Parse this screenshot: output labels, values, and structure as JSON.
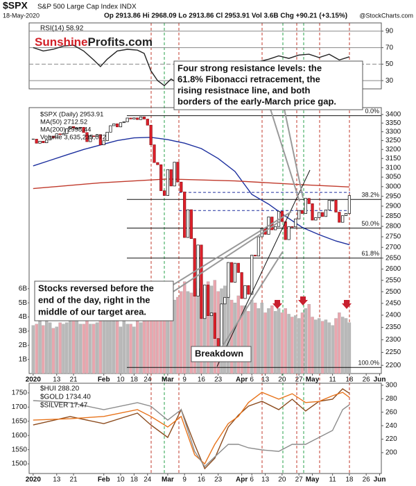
{
  "header": {
    "symbol": "$SPX",
    "description": "S&P 500 Large Cap Index INDX",
    "date": "18-May-2020",
    "quote": "Op 2913.86 Hi 2968.09 Lo 2913.86 Cl 2953.91 Vol 3.6B Chg +90.21 (+3.15%)",
    "source": "@StockCharts.com"
  },
  "logo": {
    "first": "Sunshine",
    "second": "Profits.com"
  },
  "chart_data": [
    {
      "type": "line",
      "grid": true,
      "xlim": [
        -1.2,
        103.5
      ],
      "ylim": [
        20,
        100
      ],
      "yticks": [
        30,
        50,
        70,
        90
      ],
      "series": [
        {
          "name": "RSI(14) 58.92",
          "color": "#222222",
          "x": [
            0,
            3,
            6,
            9,
            12,
            15,
            18,
            20,
            22,
            25,
            28,
            31,
            33,
            35,
            37,
            39,
            41,
            44,
            47,
            50,
            53,
            55,
            58,
            61,
            64,
            67,
            70,
            73,
            76,
            79,
            82,
            85,
            88,
            91,
            94
          ],
          "values": [
            70,
            66,
            68,
            72,
            73,
            66,
            55,
            47,
            56,
            66,
            68,
            67,
            63,
            42,
            30,
            24,
            32,
            24,
            27,
            25,
            28,
            27,
            41,
            42,
            47,
            53,
            56,
            60,
            57,
            61,
            62,
            58,
            62,
            55,
            58.92
          ]
        }
      ]
    },
    {
      "type": "candlestick",
      "log": true,
      "xlim": [
        -1.2,
        103.5
      ],
      "ylim": [
        2169,
        3441
      ],
      "yticks": [
        2200,
        2250,
        2300,
        2350,
        2400,
        2450,
        2500,
        2550,
        2600,
        2650,
        2700,
        2750,
        2800,
        2850,
        2900,
        2950,
        3000,
        3050,
        3100,
        3150,
        3200,
        3250,
        3300,
        3350,
        3400
      ],
      "y2lim": [
        0,
        18.8
      ],
      "y2ticks": [
        {
          "value": 1,
          "label": "1B"
        },
        {
          "value": 2,
          "label": "2B"
        },
        {
          "value": 3,
          "label": "3B"
        },
        {
          "value": 4,
          "label": "4B"
        },
        {
          "value": 5,
          "label": "5B"
        },
        {
          "value": 6,
          "label": "6B"
        }
      ],
      "xticks": [
        {
          "value": 0,
          "label": "2020"
        },
        {
          "value": 7,
          "label": "13"
        },
        {
          "value": 12,
          "label": "21"
        },
        {
          "value": 21,
          "label": "Feb"
        },
        {
          "value": 26,
          "label": "10"
        },
        {
          "value": 30,
          "label": "18"
        },
        {
          "value": 34,
          "label": "24"
        },
        {
          "value": 40,
          "label": "Mar"
        },
        {
          "value": 45,
          "label": "9"
        },
        {
          "value": 50,
          "label": "16"
        },
        {
          "value": 55,
          "label": "23"
        },
        {
          "value": 62,
          "label": "Apr"
        },
        {
          "value": 65,
          "label": "6"
        },
        {
          "value": 69,
          "label": "13"
        },
        {
          "value": 74,
          "label": "20"
        },
        {
          "value": 79,
          "label": "27"
        },
        {
          "value": 83,
          "label": "May"
        },
        {
          "value": 89,
          "label": "11"
        },
        {
          "value": 94,
          "label": "18"
        },
        {
          "value": 99,
          "label": "26"
        },
        {
          "value": 103,
          "label": "Jun"
        }
      ],
      "series": [
        {
          "name": "$SPX (Daily) 2953.91",
          "up_color": "#ffffff",
          "down_color": "#e0202a",
          "values": [
            3257.85,
            3234.85,
            3246.28,
            3237.18,
            3253.05,
            3274.7,
            3265.35,
            3288.13,
            3283.15,
            3289.29,
            3316.81,
            3329.62,
            3320.79,
            3321.75,
            3325.54,
            3295.47,
            3243.63,
            3276.24,
            3273.4,
            3283.66,
            3225.52,
            3248.92,
            3297.59,
            3334.69,
            3345.78,
            3327.71,
            3352.09,
            3357.75,
            3379.45,
            3373.94,
            3380.16,
            3370.29,
            3386.15,
            3373.23,
            3337.75,
            3225.89,
            3128.21,
            3116.39,
            2978.76,
            2954.22,
            3090.23,
            3003.37,
            3130.12,
            3023.94,
            2972.37,
            2746.56,
            2882.23,
            2741.38,
            2480.64,
            2711.02,
            2386.13,
            2529.19,
            2398.1,
            2409.39,
            2304.92,
            2237.4,
            2447.33,
            2475.56,
            2630.07,
            2541.47,
            2626.65,
            2584.59,
            2470.5,
            2526.9,
            2488.65,
            2663.68,
            2659.41,
            2749.98,
            2789.82,
            2761.63,
            2846.06,
            2783.36,
            2799.55,
            2874.56,
            2823.16,
            2736.56,
            2799.31,
            2797.8,
            2836.74,
            2878.48,
            2863.39,
            2939.51,
            2912.43,
            2830.71,
            2842.74,
            2868.44,
            2848.42,
            2881.19,
            2929.8,
            2930.19,
            2870.12,
            2820.0,
            2852.5,
            2863.7,
            2953.91
          ]
        },
        {
          "name": "MA(50) 2712.52",
          "color": "#1c2f9e",
          "x": [
            0,
            5,
            10,
            15,
            20,
            25,
            30,
            35,
            40,
            45,
            50,
            55,
            60,
            65,
            70,
            75,
            80,
            85,
            90,
            94
          ],
          "values": [
            3110,
            3140,
            3170,
            3200,
            3225,
            3250,
            3265,
            3268,
            3255,
            3235,
            3205,
            3150,
            3080,
            2960,
            2910,
            2850,
            2795,
            2760,
            2730,
            2712.52
          ]
        },
        {
          "name": "MA(200) 2998.44",
          "color": "#c0392b",
          "x": [
            0,
            10,
            20,
            30,
            40,
            50,
            60,
            70,
            80,
            90,
            94
          ],
          "values": [
            2990,
            3005,
            3020,
            3030,
            3040,
            3035,
            3030,
            3020,
            3010,
            3002,
            2998.44
          ]
        },
        {
          "name": "Volume 3,635,235,072",
          "axis": "y2",
          "up_color": "#b9b9b9",
          "down_color": "#e9a6ae",
          "values": [
            3.4,
            3.5,
            3.7,
            3.4,
            3.7,
            3.6,
            3.2,
            3.3,
            3.6,
            3.5,
            3.6,
            3.7,
            3.9,
            3.7,
            3.5,
            3.5,
            3.9,
            3.5,
            3.5,
            3.6,
            4.5,
            3.8,
            3.9,
            4.1,
            3.7,
            3.7,
            3.3,
            3.7,
            3.5,
            3.5,
            3.3,
            3.7,
            3.6,
            3.7,
            3.9,
            5.2,
            5.5,
            5.5,
            6.2,
            6.5,
            6.0,
            6.0,
            5.2,
            5.4,
            5.8,
            6.5,
            5.8,
            5.7,
            6.5,
            6.0,
            6.6,
            6.0,
            6.5,
            6.2,
            6.6,
            5.8,
            6.0,
            6.2,
            5.6,
            5.2,
            5.0,
            5.5,
            4.8,
            4.8,
            4.4,
            5.2,
            5.0,
            4.6,
            5.0,
            4.3,
            4.6,
            4.8,
            4.4,
            4.6,
            4.3,
            4.6,
            4.2,
            4.0,
            4.1,
            3.9,
            4.3,
            4.6,
            4.9,
            4.0,
            3.8,
            3.9,
            3.7,
            3.8,
            3.6,
            3.4,
            3.9,
            4.3,
            4.0,
            3.9,
            3.6
          ]
        }
      ],
      "levels": [
        {
          "value": 3393,
          "label": "0.0%"
        },
        {
          "value": 2934,
          "label": "38.2%"
        },
        {
          "value": 2792,
          "label": "50.0%"
        },
        {
          "value": 2650,
          "label": "61.8%"
        },
        {
          "value": 2192,
          "label": "100.0%"
        }
      ],
      "gap_lines": [
        2970,
        2878
      ],
      "annotations": [
        {
          "lines": [
            "Four strong resistance levels: the",
            "61.8% Fibonacci retracement, the",
            "rising resistnace line, and both",
            "borders of the early-March price gap."
          ]
        },
        {
          "lines": [
            "Stocks reversed before the",
            "end of the day, right in the",
            "middle of our target area."
          ]
        },
        {
          "lines": [
            "Breakdown"
          ]
        }
      ]
    },
    {
      "type": "line",
      "xlim": [
        -1.2,
        103.5
      ],
      "ylim": [
        1466,
        1784
      ],
      "yticks": [
        1500,
        1550,
        1600,
        1650,
        1700,
        1750
      ],
      "y2lim": [
        169,
        303
      ],
      "y2ticks": [
        200,
        220,
        240,
        260,
        280,
        300
      ],
      "y3lim": [
        11.24,
        19.42
      ],
      "xticks": [
        {
          "value": 0,
          "label": "2020"
        },
        {
          "value": 7,
          "label": "13"
        },
        {
          "value": 12,
          "label": "21"
        },
        {
          "value": 21,
          "label": "Feb"
        },
        {
          "value": 26,
          "label": "10"
        },
        {
          "value": 30,
          "label": "18"
        },
        {
          "value": 34,
          "label": "24"
        },
        {
          "value": 40,
          "label": "Mar"
        },
        {
          "value": 45,
          "label": "9"
        },
        {
          "value": 50,
          "label": "16"
        },
        {
          "value": 55,
          "label": "23"
        },
        {
          "value": 62,
          "label": "Apr"
        },
        {
          "value": 65,
          "label": "6"
        },
        {
          "value": 69,
          "label": "13"
        },
        {
          "value": 74,
          "label": "20"
        },
        {
          "value": 79,
          "label": "27"
        },
        {
          "value": 83,
          "label": "May"
        },
        {
          "value": 89,
          "label": "11"
        },
        {
          "value": 94,
          "label": "18"
        },
        {
          "value": 99,
          "label": "26"
        },
        {
          "value": 103,
          "label": "Jun"
        }
      ],
      "series": [
        {
          "name": "$HUI 288.20",
          "color": "#8b4a1c",
          "axis": "y2",
          "x": [
            0,
            11,
            21,
            31,
            35,
            40,
            44,
            48,
            51,
            54,
            58,
            61,
            64,
            68,
            73,
            77,
            81,
            85,
            89,
            92,
            94
          ],
          "values": [
            241,
            253.5,
            243,
            258.7,
            241,
            222.6,
            263.8,
            212.3,
            176.2,
            191.7,
            238,
            255.6,
            269,
            276.2,
            263.8,
            279.3,
            261.8,
            276.2,
            279.3,
            294.8,
            288.2
          ]
        },
        {
          "name": "$GOLD 1734.40",
          "color": "#e8731a",
          "x": [
            0,
            11,
            21,
            31,
            35,
            40,
            44,
            48,
            51,
            54,
            58,
            61,
            64,
            68,
            73,
            77,
            81,
            85,
            89,
            92,
            94
          ],
          "values": [
            1654,
            1659,
            1667,
            1691,
            1667,
            1630,
            1667,
            1532,
            1500,
            1569,
            1642,
            1667,
            1716,
            1752,
            1728,
            1747,
            1716,
            1720,
            1740,
            1752,
            1734.4
          ]
        },
        {
          "name": "$SILVER 17.47",
          "color": "#8c8c8c",
          "axis": "y3",
          "x": [
            0,
            11,
            21,
            31,
            35,
            40,
            44,
            48,
            51,
            54,
            58,
            61,
            64,
            68,
            73,
            77,
            81,
            85,
            89,
            92,
            94
          ],
          "values": [
            17.85,
            17.66,
            17.03,
            17.66,
            17.34,
            16.08,
            17.03,
            13.25,
            11.87,
            12.75,
            13.88,
            13.88,
            13.57,
            13.38,
            13.25,
            13.88,
            13.88,
            14.51,
            15.14,
            17.03,
            17.47
          ]
        }
      ]
    }
  ]
}
